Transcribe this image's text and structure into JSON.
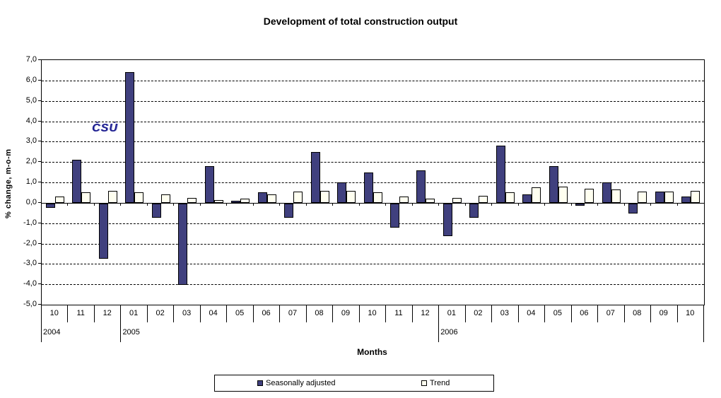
{
  "logo": {
    "text": "ČSÚ",
    "color": "#1d1d8f"
  },
  "chart_data": {
    "type": "bar",
    "title": "Development of total construction output",
    "xlabel": "Months",
    "ylabel": "%  change, m-o-m",
    "ylim": [
      -5,
      7
    ],
    "ytick_step": 1,
    "decimal_separator": ",",
    "grid": "horizontal-dashed",
    "legend_position": "bottom",
    "categories": [
      "10",
      "11",
      "12",
      "01",
      "02",
      "03",
      "04",
      "05",
      "06",
      "07",
      "08",
      "09",
      "10",
      "11",
      "12",
      "01",
      "02",
      "03",
      "04",
      "05",
      "06",
      "07",
      "08",
      "09",
      "10"
    ],
    "year_groups": [
      {
        "label": "2004",
        "start": 0,
        "count": 3
      },
      {
        "label": "2005",
        "start": 3,
        "count": 12
      },
      {
        "label": "2006",
        "start": 15,
        "count": 10
      }
    ],
    "series": [
      {
        "name": "Seasonally adjusted",
        "color": "#40407e",
        "values": [
          -0.2,
          2.1,
          -2.7,
          6.4,
          -0.7,
          -4.0,
          1.8,
          0.1,
          0.5,
          -0.7,
          2.5,
          1.0,
          1.5,
          -1.2,
          1.6,
          -1.6,
          -0.7,
          2.8,
          0.4,
          1.8,
          -0.1,
          1.0,
          -0.5,
          0.55,
          0.3
        ]
      },
      {
        "name": "Trend",
        "color": "#fffff0",
        "values": [
          0.3,
          0.5,
          0.6,
          0.5,
          0.4,
          0.25,
          0.15,
          0.2,
          0.4,
          0.55,
          0.6,
          0.6,
          0.5,
          0.3,
          0.2,
          0.25,
          0.35,
          0.5,
          0.75,
          0.8,
          0.7,
          0.65,
          0.55,
          0.55,
          0.6
        ]
      }
    ]
  }
}
